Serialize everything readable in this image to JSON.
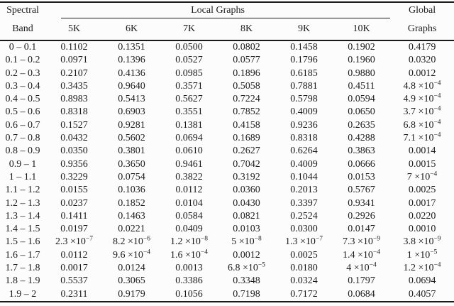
{
  "table": {
    "header": {
      "band_line1": "Spectral",
      "band_line2": "Band",
      "local_graphs_label": "Local Graphs",
      "sizes": [
        "5K",
        "6K",
        "7K",
        "8K",
        "9K",
        "10K"
      ],
      "global_line1": "Global",
      "global_line2": "Graphs"
    },
    "rows": [
      {
        "band": "0 – 0.1",
        "local": [
          "0.1102",
          "0.1351",
          "0.0500",
          "0.0802",
          "0.1458",
          "0.1902"
        ],
        "global": "0.4179"
      },
      {
        "band": "0.1 – 0.2",
        "local": [
          "0.0971",
          "0.1396",
          "0.0527",
          "0.0577",
          "0.1796",
          "0.1960"
        ],
        "global": "0.0320"
      },
      {
        "band": "0.2 – 0.3",
        "local": [
          "0.2107",
          "0.4136",
          "0.0985",
          "0.1896",
          "0.6185",
          "0.9880"
        ],
        "global": "0.0012"
      },
      {
        "band": "0.3 – 0.4",
        "local": [
          "0.3435",
          "0.9640",
          "0.3571",
          "0.5058",
          "0.7881",
          "0.4511"
        ],
        "global": "4.8 ×10^−4"
      },
      {
        "band": "0.4 – 0.5",
        "local": [
          "0.8983",
          "0.5413",
          "0.5627",
          "0.7224",
          "0.5798",
          "0.0594"
        ],
        "global": "4.9 ×10^−4"
      },
      {
        "band": "0.5 – 0.6",
        "local": [
          "0.8318",
          "0.6903",
          "0.3551",
          "0.7852",
          "0.4009",
          "0.0650"
        ],
        "global": "3.7 ×10^−4"
      },
      {
        "band": "0.6 – 0.7",
        "local": [
          "0.1527",
          "0.9281",
          "0.1381",
          "0.4158",
          "0.9236",
          "0.2635"
        ],
        "global": "6.8 ×10^−4"
      },
      {
        "band": "0.7 – 0.8",
        "local": [
          "0.0432",
          "0.5602",
          "0.0694",
          "0.1689",
          "0.8318",
          "0.4288"
        ],
        "global": "7.1 ×10^−4"
      },
      {
        "band": "0.8 – 0.9",
        "local": [
          "0.0350",
          "0.3801",
          "0.0610",
          "0.2627",
          "0.6264",
          "0.3863"
        ],
        "global": "0.0014"
      },
      {
        "band": "0.9 – 1",
        "local": [
          "0.9356",
          "0.3650",
          "0.9461",
          "0.7042",
          "0.4009",
          "0.0666"
        ],
        "global": "0.0015"
      },
      {
        "band": "1 – 1.1",
        "local": [
          "0.3229",
          "0.0754",
          "0.3822",
          "0.3192",
          "0.1044",
          "0.0153"
        ],
        "global": "7 ×10^−4"
      },
      {
        "band": "1.1 – 1.2",
        "local": [
          "0.0155",
          "0.1036",
          "0.0112",
          "0.0360",
          "0.2013",
          "0.5767"
        ],
        "global": "0.0025"
      },
      {
        "band": "1.2 – 1.3",
        "local": [
          "0.0237",
          "0.1852",
          "0.0104",
          "0.0430",
          "0.3397",
          "0.9341"
        ],
        "global": "0.0017"
      },
      {
        "band": "1.3 – 1.4",
        "local": [
          "0.1411",
          "0.1463",
          "0.0584",
          "0.0821",
          "0.2524",
          "0.2926"
        ],
        "global": "0.0220"
      },
      {
        "band": "1.4 – 1.5",
        "local": [
          "0.0197",
          "0.0221",
          "0.0409",
          "0.0103",
          "0.0300",
          "0.0147"
        ],
        "global": "0.0010"
      },
      {
        "band": "1.5 – 1.6",
        "local": [
          "2.3 ×10^−7",
          "8.2 ×10^−6",
          "1.2 ×10^−8",
          "5 ×10^−8",
          "1.3 ×10^−7",
          "7.3 ×10^−9"
        ],
        "global": "3.8 ×10^−9"
      },
      {
        "band": "1.6 – 1.7",
        "local": [
          "0.0112",
          "9.6 ×10^−4",
          "1.6 ×10^−4",
          "0.0012",
          "0.0025",
          "1.4 ×10^−4"
        ],
        "global": "1 ×10^−5"
      },
      {
        "band": "1.7 – 1.8",
        "local": [
          "0.0017",
          "0.0124",
          "0.0013",
          "6.8 ×10^−5",
          "0.0180",
          "4 ×10^−4"
        ],
        "global": "1.2 ×10^−4"
      },
      {
        "band": "1.8 – 1.9",
        "local": [
          "0.5537",
          "0.3065",
          "0.3386",
          "0.3348",
          "0.0324",
          "0.1797"
        ],
        "global": "0.0694"
      },
      {
        "band": "1.9 – 2",
        "local": [
          "0.2311",
          "0.9179",
          "0.1056",
          "0.7198",
          "0.7172",
          "0.0684"
        ],
        "global": "0.4057"
      }
    ],
    "colors": {
      "text": "#1b1b1b",
      "rule": "#1a1a1a",
      "background": "#fcfcfc"
    }
  }
}
